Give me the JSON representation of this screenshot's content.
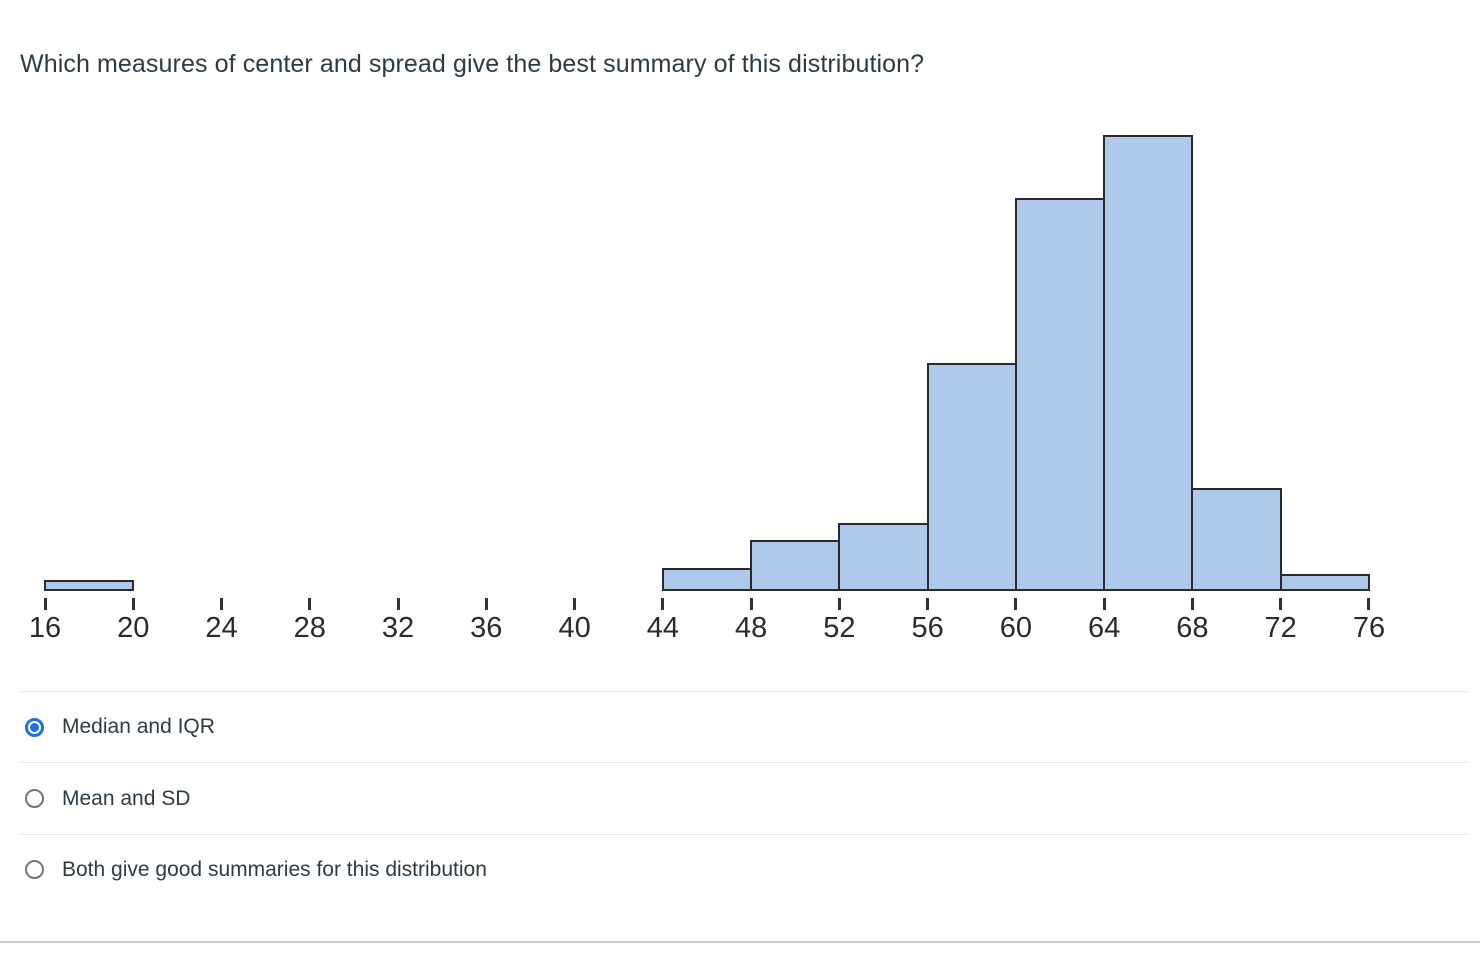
{
  "question": {
    "title": "Which measures of center and spread give the best summary of this distribution?"
  },
  "chart_data": {
    "type": "bar",
    "subtype": "histogram",
    "title": "",
    "xlabel": "",
    "ylabel": "",
    "axis_range_x": [
      16,
      76
    ],
    "bin_width": 4,
    "bin_edges": [
      16,
      20,
      24,
      28,
      32,
      36,
      40,
      44,
      48,
      52,
      56,
      60,
      64,
      68,
      72,
      76
    ],
    "frequencies": [
      2,
      0,
      0,
      0,
      0,
      0,
      0,
      4,
      9,
      12,
      40,
      69,
      80,
      18,
      3
    ],
    "note": "No y-axis drawn; frequencies estimated from relative bar heights. Left-skewed distribution with low outlier bin 16-20.",
    "x_tick_labels": [
      "16",
      "20",
      "24",
      "28",
      "32",
      "36",
      "40",
      "44",
      "48",
      "52",
      "56",
      "60",
      "64",
      "68",
      "72",
      "76"
    ],
    "grid": false,
    "legend": false,
    "bar_fill": "#aec9eb",
    "bar_border": "#2a2a2a"
  },
  "options": {
    "items": [
      {
        "label": "Median and IQR",
        "selected": true
      },
      {
        "label": "Mean and SD",
        "selected": false
      },
      {
        "label": "Both give good summaries for this distribution",
        "selected": false
      }
    ]
  },
  "colors": {
    "text": "#2d3b45",
    "axis_text": "#2b2b2b",
    "bar_fill": "#aec9eb",
    "bar_border": "#2a2a2a",
    "divider": "#e7e9eb",
    "bottom_rule": "#c6cbd0",
    "radio_selected": "#1f70e0",
    "radio_unselected_border": "#6e7780"
  }
}
